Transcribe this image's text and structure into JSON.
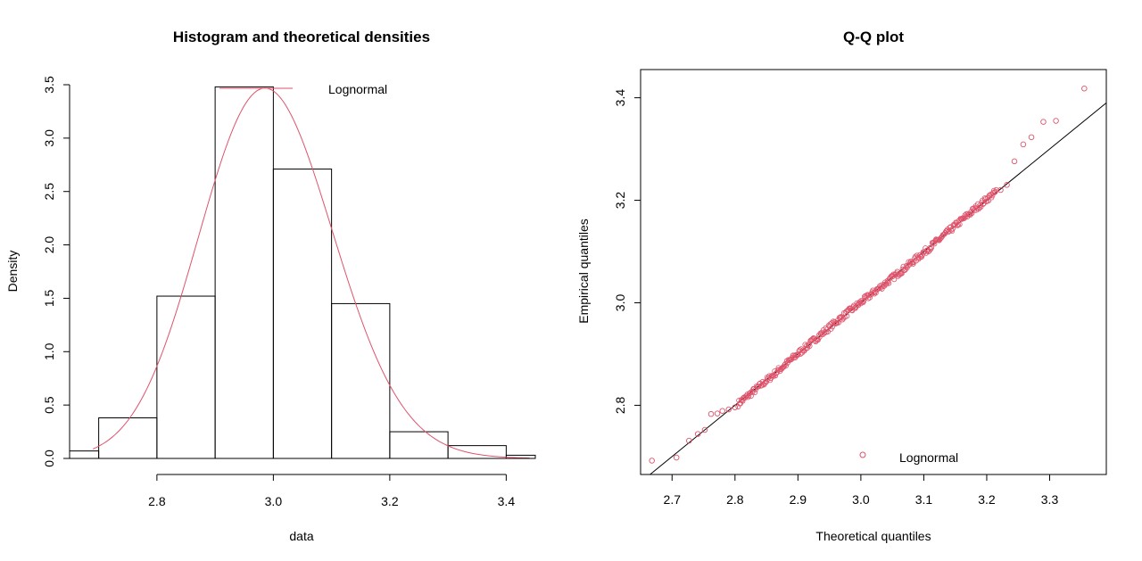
{
  "colors": {
    "fit_line": "#DF536B",
    "axis": "#000000",
    "background": "#FFFFFF"
  },
  "chart_data": [
    {
      "type": "bar",
      "subtype": "histogram-with-density",
      "title": "Histogram and theoretical densities",
      "xlabel": "data",
      "ylabel": "Density",
      "xlim": [
        2.65,
        3.45
      ],
      "ylim": [
        0,
        3.5
      ],
      "x_ticks": [
        2.8,
        3.0,
        3.2,
        3.4
      ],
      "x_tick_labels": [
        "2.8",
        "3.0",
        "3.2",
        "3.4"
      ],
      "y_ticks": [
        0.0,
        0.5,
        1.0,
        1.5,
        2.0,
        2.5,
        3.0,
        3.5
      ],
      "y_tick_labels": [
        "0.0",
        "0.5",
        "1.0",
        "1.5",
        "2.0",
        "2.5",
        "3.0",
        "3.5"
      ],
      "bins": [
        {
          "start": 2.6,
          "end": 2.7,
          "density": 0.07
        },
        {
          "start": 2.7,
          "end": 2.8,
          "density": 0.38
        },
        {
          "start": 2.8,
          "end": 2.9,
          "density": 1.52
        },
        {
          "start": 2.9,
          "end": 3.0,
          "density": 3.48
        },
        {
          "start": 3.0,
          "end": 3.1,
          "density": 2.71
        },
        {
          "start": 3.1,
          "end": 3.2,
          "density": 1.45
        },
        {
          "start": 3.2,
          "end": 3.3,
          "density": 0.25
        },
        {
          "start": 3.3,
          "end": 3.4,
          "density": 0.12
        },
        {
          "start": 3.4,
          "end": 3.5,
          "density": 0.03
        }
      ],
      "density_curve": {
        "name": "Lognormal",
        "meanlog": 1.0953,
        "sdlog": 0.0385
      },
      "legend": {
        "entries": [
          "Lognormal"
        ],
        "position": "top-right"
      },
      "grid": false
    },
    {
      "type": "scatter",
      "subtype": "qq-plot",
      "title": "Q-Q plot",
      "xlabel": "Theoretical quantiles",
      "ylabel": "Empirical quantiles",
      "xlim": [
        2.65,
        3.39
      ],
      "ylim": [
        2.665,
        3.455
      ],
      "x_ticks": [
        2.7,
        2.8,
        2.9,
        3.0,
        3.1,
        3.2,
        3.3
      ],
      "x_tick_labels": [
        "2.7",
        "2.8",
        "2.9",
        "3.0",
        "3.1",
        "3.2",
        "3.3"
      ],
      "y_ticks": [
        2.8,
        3.0,
        3.2,
        3.4
      ],
      "y_tick_labels": [
        "2.8",
        "3.0",
        "3.2",
        "3.4"
      ],
      "reference_line": {
        "intercept": 0,
        "slope": 1
      },
      "points": [
        [
          2.668,
          2.692
        ],
        [
          2.707,
          2.698
        ],
        [
          2.727,
          2.731
        ],
        [
          2.741,
          2.744
        ],
        [
          2.752,
          2.752
        ],
        [
          2.762,
          2.783
        ],
        [
          2.772,
          2.784
        ],
        [
          2.78,
          2.789
        ],
        [
          2.79,
          2.792
        ],
        [
          2.8,
          2.796
        ],
        [
          3.258,
          3.309
        ],
        [
          3.271,
          3.323
        ],
        [
          3.29,
          3.353
        ],
        [
          3.31,
          3.355
        ],
        [
          3.355,
          3.418
        ],
        [
          3.232,
          3.23
        ],
        [
          3.244,
          3.276
        ],
        [
          3.222,
          3.22
        ]
      ],
      "bulk_points": {
        "count": 340,
        "x_range": [
          2.805,
          3.215
        ],
        "description_hidden": true
      },
      "legend": {
        "entries": [
          "Lognormal"
        ],
        "position": "bottom-center"
      },
      "grid": false
    }
  ]
}
